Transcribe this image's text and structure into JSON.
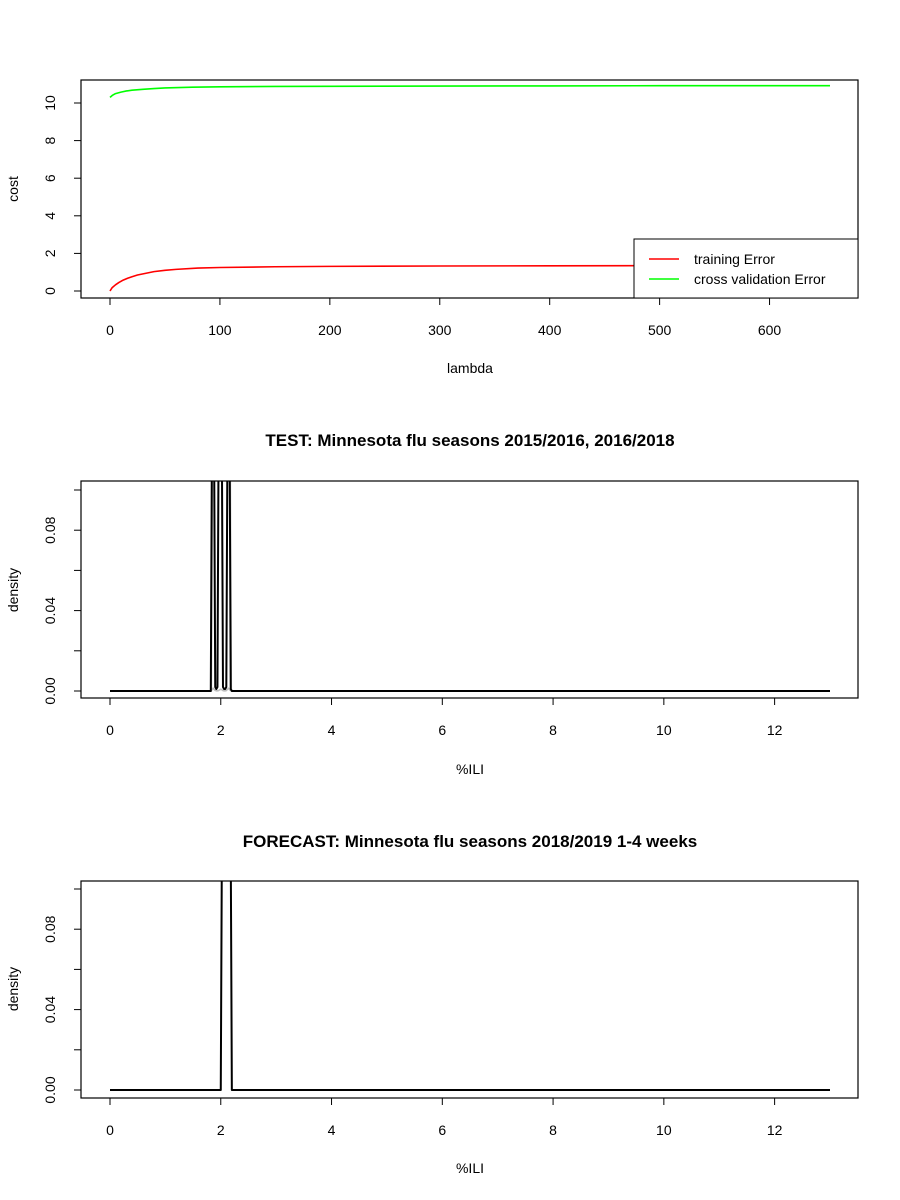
{
  "colors": {
    "red": "#ff0000",
    "green": "#00ff00",
    "black": "#000000",
    "gray": "#bebebe"
  },
  "chart_data": [
    {
      "type": "line",
      "title": "",
      "xlabel": "lambda",
      "ylabel": "cost",
      "xlim": [
        0,
        655
      ],
      "ylim": [
        0,
        11
      ],
      "xticks": [
        "0",
        "100",
        "200",
        "300",
        "400",
        "500",
        "600"
      ],
      "yticks": [
        "0",
        "2",
        "4",
        "6",
        "8",
        "10"
      ],
      "legend_position": "bottom-right",
      "series": [
        {
          "name": "training Error",
          "color": "#ff0000",
          "x": [
            0,
            2,
            5,
            8,
            12,
            16,
            20,
            25,
            30,
            40,
            50,
            60,
            80,
            100,
            150,
            200,
            300,
            400,
            500,
            600,
            655
          ],
          "y": [
            0.0,
            0.18,
            0.33,
            0.45,
            0.58,
            0.68,
            0.76,
            0.85,
            0.91,
            1.03,
            1.1,
            1.15,
            1.22,
            1.25,
            1.29,
            1.31,
            1.33,
            1.34,
            1.35,
            1.35,
            1.35
          ]
        },
        {
          "name": "cross validation Error",
          "color": "#00ff00",
          "x": [
            0,
            2,
            5,
            10,
            15,
            20,
            30,
            40,
            50,
            75,
            100,
            150,
            200,
            300,
            400,
            500,
            600,
            655
          ],
          "y": [
            10.3,
            10.4,
            10.5,
            10.58,
            10.64,
            10.68,
            10.73,
            10.77,
            10.8,
            10.84,
            10.86,
            10.88,
            10.89,
            10.9,
            10.91,
            10.92,
            10.92,
            10.92
          ]
        }
      ]
    },
    {
      "type": "line",
      "title": "TEST: Minnesota  flu seasons 2015/2016, 2016/2018",
      "xlabel": "%ILI",
      "ylabel": "density",
      "xlim": [
        0,
        13
      ],
      "ylim": [
        0,
        0.1
      ],
      "xticks": [
        "0",
        "2",
        "4",
        "6",
        "8",
        "10",
        "12"
      ],
      "yticks": [
        "0.00",
        "0.04",
        "0.08"
      ],
      "series": [
        {
          "color": "#bebebe",
          "x": [
            0,
            1.82,
            1.84,
            1.86,
            1.88,
            1.9,
            1.92,
            1.94,
            1.96,
            1.98,
            2.0,
            2.02,
            2.04,
            2.06,
            2.08,
            2.1,
            2.12,
            2.14,
            2.16,
            2.18,
            2.2,
            2.22,
            13
          ],
          "y": [
            0,
            0,
            0.0006,
            0.0014,
            0.0008,
            0.0003,
            0.0001,
            0.0001,
            0.0002,
            0.0006,
            0.0009,
            0.0006,
            0.0002,
            0.0001,
            0.0001,
            0.0002,
            0.0008,
            0.0014,
            0.0006,
            0.0002,
            0,
            0,
            0
          ]
        },
        {
          "color": "#bebebe",
          "x": [
            0,
            1.83,
            1.85,
            1.87,
            1.95,
            1.97,
            1.99,
            2.01,
            2.03,
            2.05,
            2.13,
            2.15,
            2.17,
            2.19,
            13
          ],
          "y": [
            0,
            0,
            0.12,
            0.12,
            0.12,
            0.12,
            0.12,
            0.12,
            0.12,
            0.12,
            0.12,
            0.12,
            0.12,
            0,
            0
          ]
        },
        {
          "color": "#000000",
          "x": [
            0,
            1.82,
            1.84,
            1.86,
            1.88,
            1.9,
            1.92,
            1.94,
            1.96,
            1.98,
            2.0,
            2.02,
            2.04,
            2.06,
            2.08,
            2.1,
            2.12,
            2.14,
            2.16,
            2.18,
            2.2,
            2.22,
            13
          ],
          "y": [
            0,
            0,
            0.12,
            0.12,
            0.12,
            0.002,
            0.001,
            0.002,
            0.12,
            0.12,
            0.12,
            0.12,
            0.002,
            0.001,
            0.001,
            0.002,
            0.12,
            0.12,
            0.12,
            0.001,
            0,
            0,
            0
          ]
        }
      ]
    },
    {
      "type": "line",
      "title": "FORECAST: Minnesota flu seasons 2018/2019 1-4 weeks",
      "xlabel": "%ILI",
      "ylabel": "density",
      "xlim": [
        0,
        13
      ],
      "ylim": [
        0,
        0.1
      ],
      "xticks": [
        "0",
        "2",
        "4",
        "6",
        "8",
        "10",
        "12"
      ],
      "yticks": [
        "0.00",
        "0.04",
        "0.08"
      ],
      "series": [
        {
          "color": "#000000",
          "x": [
            0,
            2.0,
            2.02,
            2.18,
            2.2,
            13
          ],
          "y": [
            0,
            0,
            0.12,
            0.12,
            0,
            0
          ]
        }
      ]
    }
  ]
}
